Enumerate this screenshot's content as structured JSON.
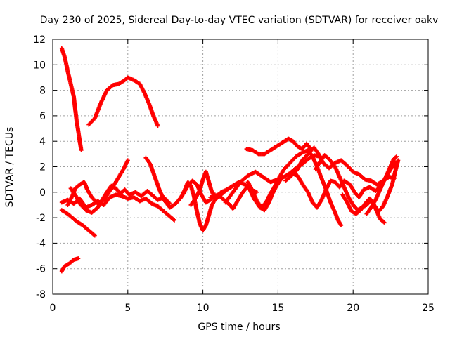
{
  "chart_data": {
    "type": "scatter",
    "title": "Day 230 of 2025, Sidereal Day-to-day VTEC variation (SDTVAR) for receiver oakv",
    "xlabel": "GPS time / hours",
    "ylabel": "SDTVAR / TECUs",
    "xlim": [
      0,
      25
    ],
    "ylim": [
      -8,
      12
    ],
    "xticks": [
      0,
      5,
      10,
      15,
      20,
      25
    ],
    "yticks": [
      -8,
      -6,
      -4,
      -2,
      0,
      2,
      4,
      6,
      8,
      10,
      12
    ],
    "grid": true,
    "marker": "plus",
    "color": "#ff0000",
    "series": [
      {
        "name": "s1",
        "points": [
          [
            0.6,
            11.3
          ],
          [
            0.8,
            10.6
          ],
          [
            1.0,
            9.5
          ],
          [
            1.2,
            8.5
          ],
          [
            1.4,
            7.5
          ],
          [
            1.5,
            6.5
          ],
          [
            1.6,
            5.5
          ],
          [
            1.7,
            4.8
          ],
          [
            1.8,
            4.0
          ],
          [
            1.9,
            3.3
          ]
        ]
      },
      {
        "name": "s2",
        "points": [
          [
            2.4,
            5.3
          ],
          [
            2.8,
            5.8
          ],
          [
            3.2,
            7.0
          ],
          [
            3.6,
            8.0
          ],
          [
            4.0,
            8.4
          ],
          [
            4.4,
            8.5
          ],
          [
            4.8,
            8.8
          ],
          [
            5.0,
            9.0
          ],
          [
            5.4,
            8.8
          ],
          [
            5.8,
            8.5
          ],
          [
            6.1,
            7.8
          ],
          [
            6.4,
            7.0
          ],
          [
            6.7,
            6.0
          ],
          [
            7.0,
            5.2
          ]
        ]
      },
      {
        "name": "s3",
        "points": [
          [
            0.6,
            -6.2
          ],
          [
            0.8,
            -5.8
          ],
          [
            1.1,
            -5.6
          ],
          [
            1.4,
            -5.3
          ],
          [
            1.7,
            -5.2
          ]
        ]
      },
      {
        "name": "s4",
        "points": [
          [
            0.6,
            -1.4
          ],
          [
            1.0,
            -1.7
          ],
          [
            1.3,
            -2.0
          ],
          [
            1.6,
            -2.3
          ],
          [
            2.0,
            -2.6
          ],
          [
            2.4,
            -3.0
          ],
          [
            2.8,
            -3.4
          ]
        ]
      },
      {
        "name": "s5",
        "points": [
          [
            0.6,
            -0.8
          ],
          [
            1.0,
            -0.6
          ],
          [
            1.4,
            -0.9
          ],
          [
            1.8,
            -0.5
          ],
          [
            2.2,
            -1.2
          ],
          [
            2.6,
            -1.0
          ],
          [
            3.0,
            -0.7
          ],
          [
            3.4,
            -1.0
          ],
          [
            3.8,
            -0.4
          ],
          [
            4.2,
            -0.2
          ],
          [
            4.6,
            -0.3
          ],
          [
            5.0,
            -0.5
          ],
          [
            5.4,
            -0.4
          ],
          [
            5.8,
            -0.7
          ],
          [
            6.2,
            -0.5
          ],
          [
            6.6,
            -0.9
          ],
          [
            7.0,
            -1.1
          ],
          [
            7.4,
            -1.5
          ],
          [
            7.8,
            -1.9
          ],
          [
            8.1,
            -2.2
          ]
        ]
      },
      {
        "name": "s6",
        "points": [
          [
            1.0,
            -1.0
          ],
          [
            1.3,
            -0.3
          ],
          [
            1.5,
            0.3
          ],
          [
            1.8,
            0.6
          ],
          [
            2.1,
            0.8
          ],
          [
            2.3,
            0.2
          ],
          [
            2.6,
            -0.4
          ],
          [
            3.0,
            -0.9
          ],
          [
            3.4,
            -0.6
          ],
          [
            3.8,
            0.1
          ],
          [
            4.1,
            0.6
          ],
          [
            4.4,
            1.2
          ],
          [
            4.7,
            1.8
          ],
          [
            5.0,
            2.5
          ]
        ]
      },
      {
        "name": "s7",
        "points": [
          [
            1.2,
            0.3
          ],
          [
            1.5,
            -0.2
          ],
          [
            1.8,
            -0.9
          ],
          [
            2.2,
            -1.4
          ],
          [
            2.6,
            -1.6
          ],
          [
            3.0,
            -1.2
          ],
          [
            3.3,
            -0.6
          ],
          [
            3.6,
            0.0
          ],
          [
            3.9,
            0.5
          ],
          [
            4.2,
            0.3
          ],
          [
            4.5,
            -0.1
          ],
          [
            4.8,
            0.2
          ],
          [
            5.1,
            -0.2
          ],
          [
            5.5,
            0.0
          ],
          [
            5.9,
            -0.3
          ],
          [
            6.3,
            0.1
          ],
          [
            6.6,
            -0.2
          ],
          [
            7.0,
            -0.6
          ],
          [
            7.4,
            -0.4
          ],
          [
            7.8,
            -0.9
          ]
        ]
      },
      {
        "name": "s8",
        "points": [
          [
            6.2,
            2.7
          ],
          [
            6.5,
            2.2
          ],
          [
            6.8,
            1.2
          ],
          [
            7.1,
            0.2
          ],
          [
            7.4,
            -0.6
          ],
          [
            7.8,
            -1.2
          ],
          [
            8.2,
            -0.9
          ],
          [
            8.6,
            -0.3
          ],
          [
            9.0,
            0.5
          ],
          [
            9.3,
            0.9
          ],
          [
            9.6,
            0.6
          ],
          [
            9.9,
            -0.2
          ],
          [
            10.2,
            -0.8
          ],
          [
            10.5,
            -0.6
          ],
          [
            10.8,
            -0.2
          ]
        ]
      },
      {
        "name": "s9",
        "points": [
          [
            8.5,
            -0.5
          ],
          [
            8.8,
            0.2
          ],
          [
            9.0,
            0.8
          ],
          [
            9.2,
            0.5
          ],
          [
            9.4,
            -0.3
          ],
          [
            9.6,
            -1.5
          ],
          [
            9.8,
            -2.5
          ],
          [
            10.0,
            -3.0
          ],
          [
            10.2,
            -2.6
          ],
          [
            10.4,
            -1.8
          ],
          [
            10.6,
            -1.0
          ],
          [
            10.9,
            -0.4
          ],
          [
            11.2,
            0.0
          ],
          [
            11.6,
            0.2
          ],
          [
            12.0,
            0.5
          ]
        ]
      },
      {
        "name": "s10",
        "points": [
          [
            9.2,
            -1.0
          ],
          [
            9.5,
            -0.5
          ],
          [
            9.8,
            0.2
          ],
          [
            10.0,
            1.0
          ],
          [
            10.2,
            1.6
          ],
          [
            10.4,
            0.8
          ],
          [
            10.6,
            0.0
          ],
          [
            10.9,
            -0.5
          ],
          [
            11.2,
            -0.2
          ],
          [
            11.6,
            0.2
          ],
          [
            12.0,
            0.5
          ],
          [
            12.4,
            0.8
          ],
          [
            12.8,
            0.6
          ],
          [
            13.2,
            0.2
          ],
          [
            13.6,
            0.0
          ]
        ]
      },
      {
        "name": "s11",
        "points": [
          [
            10.5,
            -0.4
          ],
          [
            11.0,
            -0.2
          ],
          [
            11.4,
            -0.6
          ],
          [
            11.8,
            -1.0
          ],
          [
            12.0,
            -1.3
          ],
          [
            12.3,
            -0.7
          ],
          [
            12.6,
            -0.1
          ],
          [
            13.0,
            0.5
          ],
          [
            13.4,
            -0.5
          ],
          [
            13.8,
            -1.2
          ],
          [
            14.1,
            -1.4
          ],
          [
            14.4,
            -0.8
          ],
          [
            14.6,
            -0.2
          ],
          [
            14.9,
            0.5
          ],
          [
            15.3,
            1.2
          ]
        ]
      },
      {
        "name": "s12",
        "points": [
          [
            11.5,
            -0.8
          ],
          [
            12.0,
            0.0
          ],
          [
            12.5,
            0.8
          ],
          [
            13.0,
            1.3
          ],
          [
            13.5,
            1.6
          ],
          [
            14.0,
            1.2
          ],
          [
            14.5,
            0.8
          ],
          [
            15.0,
            1.0
          ],
          [
            15.4,
            1.2
          ],
          [
            15.8,
            1.5
          ],
          [
            16.2,
            1.9
          ],
          [
            16.6,
            2.2
          ],
          [
            17.0,
            2.6
          ],
          [
            17.4,
            2.9
          ],
          [
            17.8,
            2.8
          ]
        ]
      },
      {
        "name": "s13",
        "points": [
          [
            12.9,
            3.4
          ],
          [
            13.3,
            3.3
          ],
          [
            13.7,
            3.0
          ],
          [
            14.1,
            3.0
          ],
          [
            14.5,
            3.3
          ],
          [
            14.9,
            3.6
          ],
          [
            15.3,
            3.9
          ],
          [
            15.7,
            4.2
          ],
          [
            16.0,
            4.0
          ],
          [
            16.3,
            3.6
          ],
          [
            16.6,
            3.4
          ],
          [
            16.9,
            3.8
          ],
          [
            17.2,
            3.4
          ]
        ]
      },
      {
        "name": "s14",
        "points": [
          [
            13.0,
            0.8
          ],
          [
            13.3,
            0.1
          ],
          [
            13.6,
            -0.7
          ],
          [
            13.9,
            -1.2
          ],
          [
            14.2,
            -0.8
          ],
          [
            14.5,
            -0.1
          ],
          [
            14.8,
            0.5
          ],
          [
            15.1,
            1.2
          ],
          [
            15.4,
            1.8
          ],
          [
            15.8,
            2.3
          ],
          [
            16.2,
            2.8
          ],
          [
            16.6,
            3.1
          ],
          [
            17.0,
            3.3
          ],
          [
            17.3,
            2.8
          ],
          [
            17.6,
            2.0
          ],
          [
            17.9,
            1.1
          ],
          [
            18.2,
            0.2
          ],
          [
            18.5,
            -0.8
          ],
          [
            18.8,
            -1.6
          ],
          [
            19.0,
            -2.2
          ],
          [
            19.2,
            -2.6
          ]
        ]
      },
      {
        "name": "s15",
        "points": [
          [
            15.5,
            0.9
          ],
          [
            15.9,
            1.3
          ],
          [
            16.3,
            1.8
          ],
          [
            16.6,
            2.5
          ],
          [
            17.0,
            3.0
          ],
          [
            17.4,
            3.5
          ],
          [
            17.7,
            3.0
          ],
          [
            18.0,
            2.3
          ],
          [
            18.4,
            1.9
          ],
          [
            18.8,
            2.3
          ],
          [
            19.2,
            2.5
          ],
          [
            19.6,
            2.1
          ],
          [
            20.0,
            1.6
          ],
          [
            20.4,
            1.4
          ],
          [
            20.8,
            1.0
          ],
          [
            21.2,
            0.9
          ],
          [
            21.6,
            0.6
          ],
          [
            22.0,
            0.9
          ],
          [
            22.4,
            1.2
          ],
          [
            22.8,
            1.1
          ]
        ]
      },
      {
        "name": "s16",
        "points": [
          [
            15.9,
            1.5
          ],
          [
            16.3,
            1.3
          ],
          [
            16.7,
            0.5
          ],
          [
            17.0,
            0.0
          ],
          [
            17.3,
            -0.8
          ],
          [
            17.6,
            -1.2
          ],
          [
            17.9,
            -0.6
          ],
          [
            18.2,
            0.2
          ],
          [
            18.5,
            0.9
          ],
          [
            18.8,
            0.8
          ],
          [
            19.1,
            0.4
          ],
          [
            19.4,
            0.9
          ],
          [
            19.8,
            0.6
          ],
          [
            20.1,
            0.0
          ],
          [
            20.4,
            -0.4
          ],
          [
            20.7,
            0.2
          ],
          [
            21.1,
            0.4
          ],
          [
            21.5,
            0.1
          ],
          [
            21.9,
            0.6
          ],
          [
            22.4,
            1.6
          ],
          [
            22.8,
            2.4
          ]
        ]
      },
      {
        "name": "s17",
        "points": [
          [
            17.5,
            1.8
          ],
          [
            17.8,
            2.4
          ],
          [
            18.1,
            2.9
          ],
          [
            18.4,
            2.6
          ],
          [
            18.8,
            2.0
          ],
          [
            19.1,
            1.2
          ],
          [
            19.4,
            0.4
          ],
          [
            19.7,
            -0.4
          ],
          [
            20.0,
            -1.0
          ],
          [
            20.3,
            -1.4
          ],
          [
            20.6,
            -1.2
          ],
          [
            20.9,
            -1.0
          ],
          [
            21.2,
            -0.6
          ],
          [
            21.5,
            -1.3
          ],
          [
            21.8,
            -2.1
          ],
          [
            22.1,
            -2.4
          ]
        ]
      },
      {
        "name": "s18",
        "points": [
          [
            19.3,
            -0.2
          ],
          [
            19.6,
            -0.8
          ],
          [
            19.9,
            -1.5
          ],
          [
            20.2,
            -1.7
          ],
          [
            20.5,
            -1.4
          ],
          [
            20.8,
            -0.9
          ],
          [
            21.1,
            -0.5
          ],
          [
            21.4,
            -1.0
          ],
          [
            21.7,
            -1.5
          ],
          [
            22.0,
            -1.1
          ],
          [
            22.3,
            -0.3
          ],
          [
            22.6,
            0.6
          ],
          [
            22.8,
            1.6
          ],
          [
            23.0,
            2.5
          ]
        ]
      },
      {
        "name": "s19",
        "points": [
          [
            20.9,
            -1.7
          ],
          [
            21.2,
            -1.2
          ],
          [
            21.5,
            -0.6
          ],
          [
            21.8,
            0.2
          ],
          [
            22.1,
            1.0
          ],
          [
            22.4,
            1.8
          ],
          [
            22.7,
            2.6
          ],
          [
            22.9,
            2.8
          ]
        ]
      }
    ]
  }
}
